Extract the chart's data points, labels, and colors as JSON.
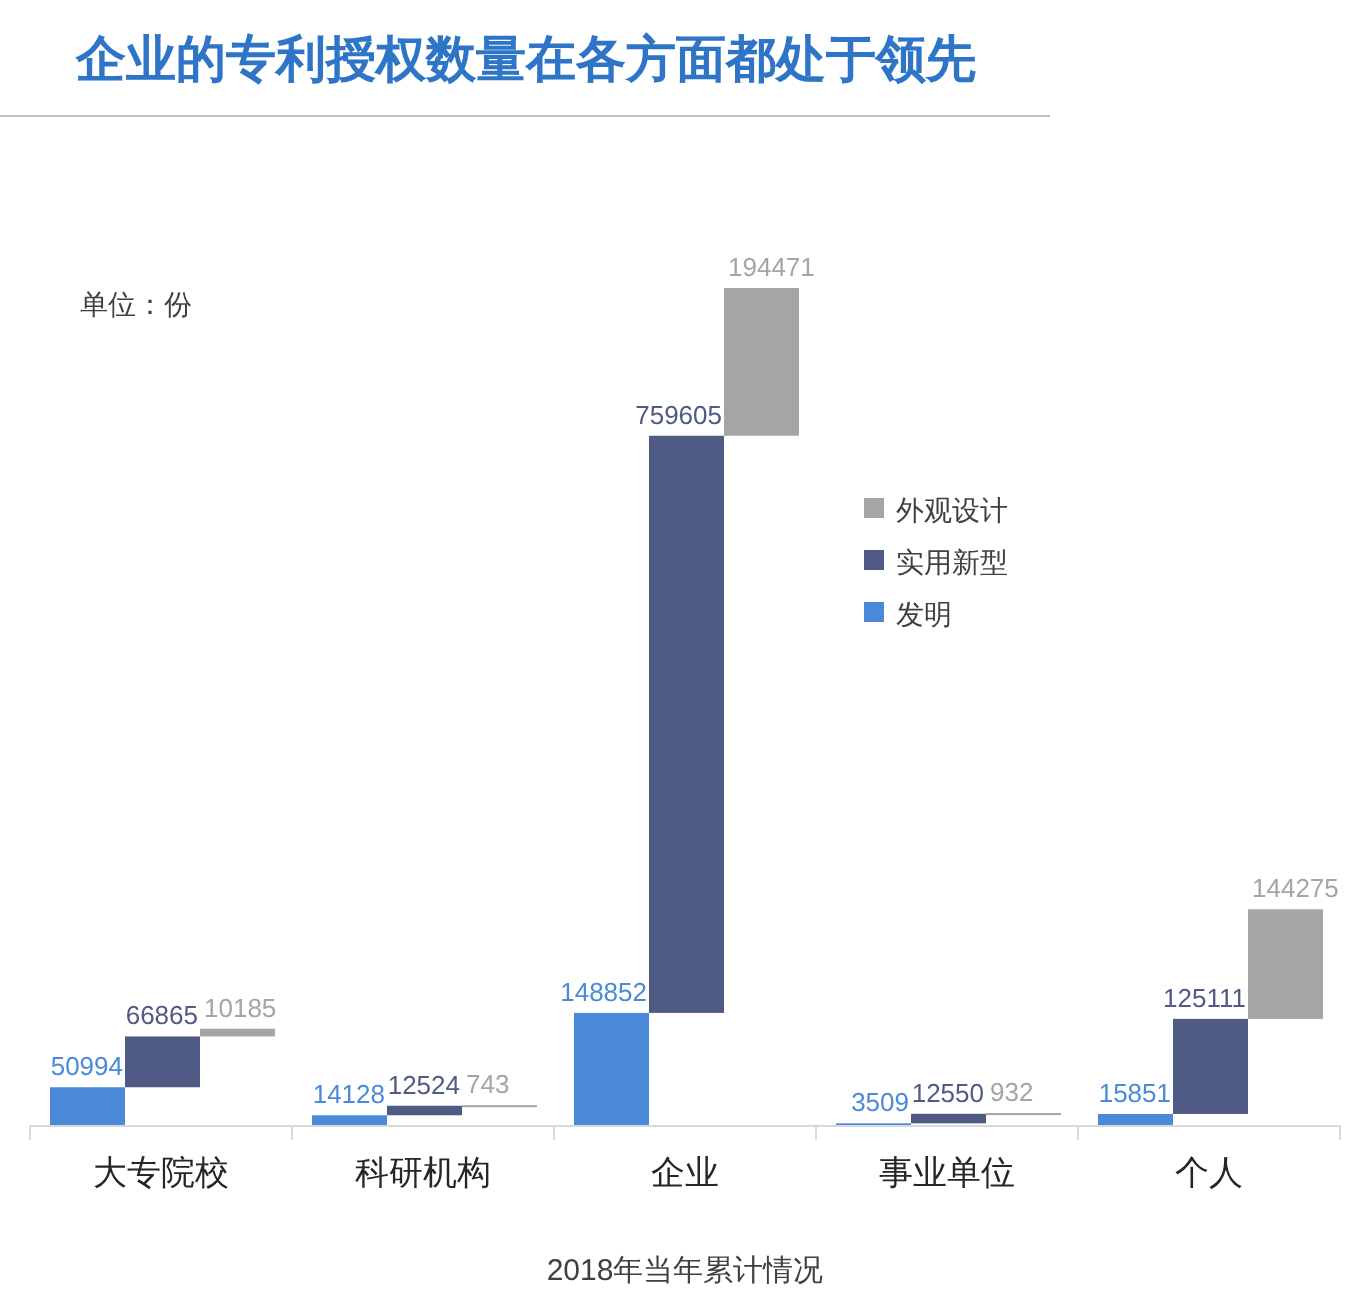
{
  "chart_data": {
    "type": "bar",
    "title": "企业的专利授权数量在各方面都处于领先",
    "xlabel": "2018年当年累计情况",
    "annotations": [
      "单位：份"
    ],
    "categories": [
      "大专院校",
      "科研机构",
      "企业",
      "事业单位",
      "个人"
    ],
    "series": [
      {
        "name": "发明",
        "color": "#4a8ad8",
        "values": [
          50994,
          14128,
          148852,
          3509,
          15851
        ]
      },
      {
        "name": "实用新型",
        "color": "#4f5b85",
        "values": [
          66865,
          12524,
          759605,
          12550,
          125111
        ]
      },
      {
        "name": "外观设计",
        "color": "#a5a5a5",
        "values": [
          10185,
          743,
          194471,
          932,
          144275
        ]
      }
    ],
    "stacked": true,
    "data_labels": true,
    "legend": "right",
    "grid": false
  }
}
